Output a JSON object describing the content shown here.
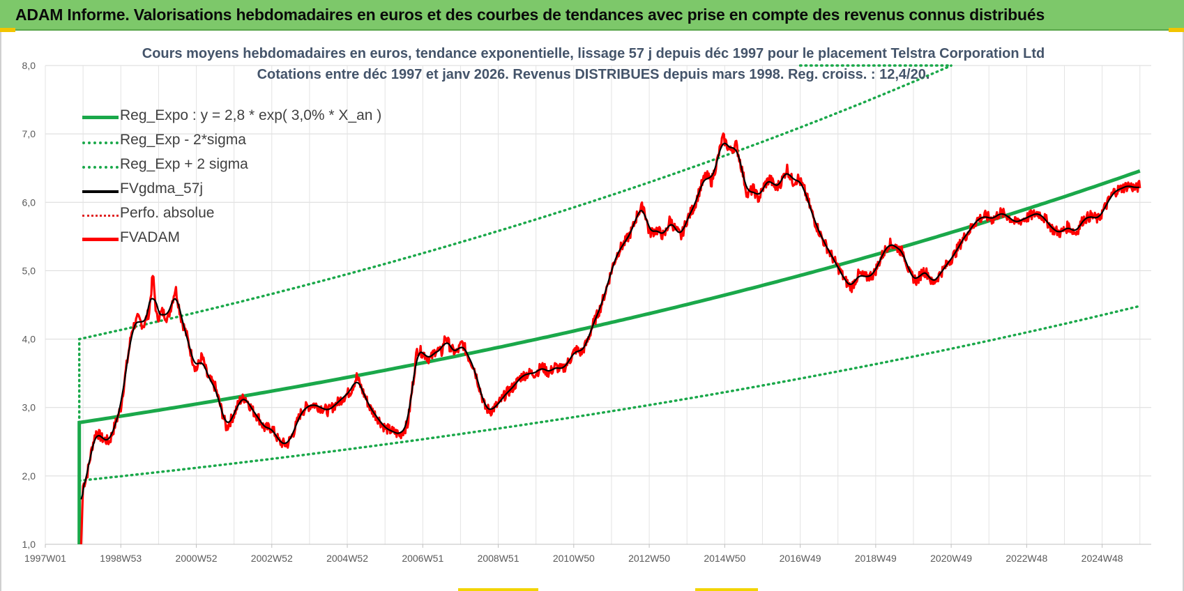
{
  "header": {
    "title": "ADAM Informe. Valorisations hebdomadaires en euros et des courbes de tendances avec prise en compte des revenus connus distribués"
  },
  "colors": {
    "header_bg": "#7dc86a",
    "green": "#1aa84a",
    "red": "#ff0000",
    "black": "#000000",
    "dotted_red": "#e02020"
  },
  "chart_data": {
    "type": "line",
    "title_lines": [
      "Cours moyens hebdomadaires en euros, tendance exponentielle, lissage 57 j depuis déc 1997 pour le placement Telstra Corporation Ltd",
      "Cotations entre déc 1997 et janv 2026. Revenus DISTRIBUES depuis mars 1998. Reg. croiss. : 12,4/20."
    ],
    "x_axis": {
      "tick_labels": [
        "1997W01",
        "1998W53",
        "2000W52",
        "2002W52",
        "2004W52",
        "2006W51",
        "2008W51",
        "2010W50",
        "2012W50",
        "2014W50",
        "2016W49",
        "2018W49",
        "2020W49",
        "2022W48",
        "2024W48"
      ],
      "tick_years": [
        1997.0,
        1999.0,
        2001.0,
        2003.0,
        2005.0,
        2007.0,
        2009.0,
        2011.0,
        2013.0,
        2015.0,
        2017.0,
        2019.0,
        2021.0,
        2023.0,
        2025.0
      ],
      "range": [
        1997.0,
        2026.3
      ]
    },
    "y_axis": {
      "range": [
        1.0,
        8.0
      ],
      "ticks": [
        1.0,
        2.0,
        3.0,
        4.0,
        5.0,
        6.0,
        7.0,
        8.0
      ],
      "tick_labels": [
        "1,0",
        "2,0",
        "3,0",
        "4,0",
        "5,0",
        "6,0",
        "7,0",
        "8,0"
      ]
    },
    "legend": [
      {
        "key": "reg_expo",
        "label": "Reg_Expo : y = 2,8 * exp( 3,0% *  X_an )",
        "color": "#1aa84a",
        "style": "solid"
      },
      {
        "key": "reg_minus",
        "label": "Reg_Exp - 2*sigma",
        "color": "#1aa84a",
        "style": "dotted"
      },
      {
        "key": "reg_plus",
        "label": "Reg_Exp + 2 sigma",
        "color": "#1aa84a",
        "style": "dotted"
      },
      {
        "key": "fvgdma",
        "label": "FVgdma_57j",
        "color": "#000000",
        "style": "solid"
      },
      {
        "key": "perfo",
        "label": "Perfo. absolue",
        "color": "#e02020",
        "style": "dotted"
      },
      {
        "key": "fvadam",
        "label": "FVADAM",
        "color": "#ff0000",
        "style": "solid"
      }
    ],
    "regression": {
      "start_year": 1997.9,
      "end_year": 2026.0,
      "base": 2.78,
      "rate": 0.03,
      "minus_base": 1.93,
      "plus_base": 4.0
    },
    "series": [
      {
        "name": "FVADAM",
        "points": [
          [
            1997.95,
            1.0
          ],
          [
            1998.0,
            1.85
          ],
          [
            1998.1,
            2.0
          ],
          [
            1998.25,
            2.45
          ],
          [
            1998.35,
            2.65
          ],
          [
            1998.5,
            2.55
          ],
          [
            1998.7,
            2.5
          ],
          [
            1998.85,
            2.75
          ],
          [
            1999.0,
            3.0
          ],
          [
            1999.15,
            3.6
          ],
          [
            1999.3,
            4.15
          ],
          [
            1999.45,
            4.3
          ],
          [
            1999.6,
            4.2
          ],
          [
            1999.75,
            4.4
          ],
          [
            1999.85,
            4.95
          ],
          [
            1999.95,
            4.3
          ],
          [
            2000.1,
            4.4
          ],
          [
            2000.25,
            4.3
          ],
          [
            2000.45,
            4.75
          ],
          [
            2000.6,
            4.3
          ],
          [
            2000.75,
            4.05
          ],
          [
            2000.9,
            3.7
          ],
          [
            2001.0,
            3.55
          ],
          [
            2001.15,
            3.75
          ],
          [
            2001.3,
            3.45
          ],
          [
            2001.5,
            3.3
          ],
          [
            2001.65,
            3.0
          ],
          [
            2001.8,
            2.7
          ],
          [
            2002.0,
            2.9
          ],
          [
            2002.15,
            3.1
          ],
          [
            2002.3,
            3.15
          ],
          [
            2002.5,
            2.95
          ],
          [
            2002.65,
            2.85
          ],
          [
            2002.8,
            2.7
          ],
          [
            2003.0,
            2.7
          ],
          [
            2003.2,
            2.5
          ],
          [
            2003.4,
            2.45
          ],
          [
            2003.55,
            2.6
          ],
          [
            2003.75,
            2.9
          ],
          [
            2003.9,
            3.0
          ],
          [
            2004.1,
            3.05
          ],
          [
            2004.3,
            3.0
          ],
          [
            2004.5,
            2.95
          ],
          [
            2004.7,
            3.05
          ],
          [
            2004.9,
            3.15
          ],
          [
            2005.1,
            3.25
          ],
          [
            2005.25,
            3.45
          ],
          [
            2005.4,
            3.25
          ],
          [
            2005.6,
            3.0
          ],
          [
            2005.8,
            2.85
          ],
          [
            2006.0,
            2.7
          ],
          [
            2006.2,
            2.65
          ],
          [
            2006.4,
            2.6
          ],
          [
            2006.6,
            2.75
          ],
          [
            2006.75,
            3.4
          ],
          [
            2006.85,
            3.85
          ],
          [
            2007.0,
            3.8
          ],
          [
            2007.2,
            3.7
          ],
          [
            2007.35,
            3.85
          ],
          [
            2007.5,
            3.8
          ],
          [
            2007.6,
            4.05
          ],
          [
            2007.75,
            3.85
          ],
          [
            2007.9,
            3.8
          ],
          [
            2008.05,
            3.95
          ],
          [
            2008.2,
            3.75
          ],
          [
            2008.35,
            3.6
          ],
          [
            2008.5,
            3.3
          ],
          [
            2008.65,
            3.0
          ],
          [
            2008.8,
            2.95
          ],
          [
            2009.0,
            3.05
          ],
          [
            2009.2,
            3.2
          ],
          [
            2009.4,
            3.3
          ],
          [
            2009.6,
            3.45
          ],
          [
            2009.8,
            3.5
          ],
          [
            2010.0,
            3.5
          ],
          [
            2010.15,
            3.6
          ],
          [
            2010.35,
            3.5
          ],
          [
            2010.5,
            3.6
          ],
          [
            2010.7,
            3.55
          ],
          [
            2010.9,
            3.7
          ],
          [
            2011.05,
            3.85
          ],
          [
            2011.2,
            3.8
          ],
          [
            2011.35,
            3.95
          ],
          [
            2011.5,
            4.2
          ],
          [
            2011.7,
            4.45
          ],
          [
            2011.9,
            4.8
          ],
          [
            2012.05,
            5.1
          ],
          [
            2012.2,
            5.3
          ],
          [
            2012.4,
            5.45
          ],
          [
            2012.55,
            5.6
          ],
          [
            2012.7,
            5.85
          ],
          [
            2012.85,
            5.95
          ],
          [
            2013.0,
            5.55
          ],
          [
            2013.2,
            5.6
          ],
          [
            2013.4,
            5.5
          ],
          [
            2013.55,
            5.75
          ],
          [
            2013.7,
            5.6
          ],
          [
            2013.85,
            5.5
          ],
          [
            2014.0,
            5.75
          ],
          [
            2014.2,
            5.95
          ],
          [
            2014.35,
            6.2
          ],
          [
            2014.5,
            6.4
          ],
          [
            2014.65,
            6.3
          ],
          [
            2014.8,
            6.6
          ],
          [
            2014.95,
            6.95
          ],
          [
            2015.05,
            6.85
          ],
          [
            2015.15,
            6.75
          ],
          [
            2015.3,
            6.85
          ],
          [
            2015.45,
            6.5
          ],
          [
            2015.6,
            6.1
          ],
          [
            2015.75,
            6.2
          ],
          [
            2015.9,
            6.05
          ],
          [
            2016.05,
            6.25
          ],
          [
            2016.2,
            6.35
          ],
          [
            2016.35,
            6.2
          ],
          [
            2016.5,
            6.3
          ],
          [
            2016.65,
            6.5
          ],
          [
            2016.8,
            6.3
          ],
          [
            2016.95,
            6.35
          ],
          [
            2017.1,
            6.2
          ],
          [
            2017.25,
            5.95
          ],
          [
            2017.4,
            5.7
          ],
          [
            2017.6,
            5.45
          ],
          [
            2017.8,
            5.25
          ],
          [
            2018.0,
            5.05
          ],
          [
            2018.2,
            4.85
          ],
          [
            2018.35,
            4.75
          ],
          [
            2018.55,
            4.95
          ],
          [
            2018.75,
            4.9
          ],
          [
            2018.95,
            4.95
          ],
          [
            2019.15,
            5.2
          ],
          [
            2019.35,
            5.4
          ],
          [
            2019.55,
            5.35
          ],
          [
            2019.75,
            5.25
          ],
          [
            2019.9,
            4.95
          ],
          [
            2020.1,
            4.85
          ],
          [
            2020.25,
            5.0
          ],
          [
            2020.4,
            4.95
          ],
          [
            2020.5,
            4.8
          ],
          [
            2020.7,
            4.95
          ],
          [
            2020.9,
            5.1
          ],
          [
            2021.1,
            5.25
          ],
          [
            2021.3,
            5.45
          ],
          [
            2021.5,
            5.6
          ],
          [
            2021.7,
            5.75
          ],
          [
            2021.9,
            5.8
          ],
          [
            2022.1,
            5.75
          ],
          [
            2022.3,
            5.85
          ],
          [
            2022.5,
            5.8
          ],
          [
            2022.7,
            5.7
          ],
          [
            2022.9,
            5.75
          ],
          [
            2023.1,
            5.8
          ],
          [
            2023.3,
            5.85
          ],
          [
            2023.5,
            5.75
          ],
          [
            2023.7,
            5.6
          ],
          [
            2023.9,
            5.55
          ],
          [
            2024.1,
            5.65
          ],
          [
            2024.3,
            5.55
          ],
          [
            2024.5,
            5.75
          ],
          [
            2024.7,
            5.8
          ],
          [
            2024.9,
            5.75
          ],
          [
            2025.1,
            5.95
          ],
          [
            2025.3,
            6.15
          ],
          [
            2025.5,
            6.2
          ],
          [
            2025.7,
            6.25
          ],
          [
            2025.9,
            6.2
          ],
          [
            2026.0,
            6.25
          ]
        ]
      }
    ]
  }
}
